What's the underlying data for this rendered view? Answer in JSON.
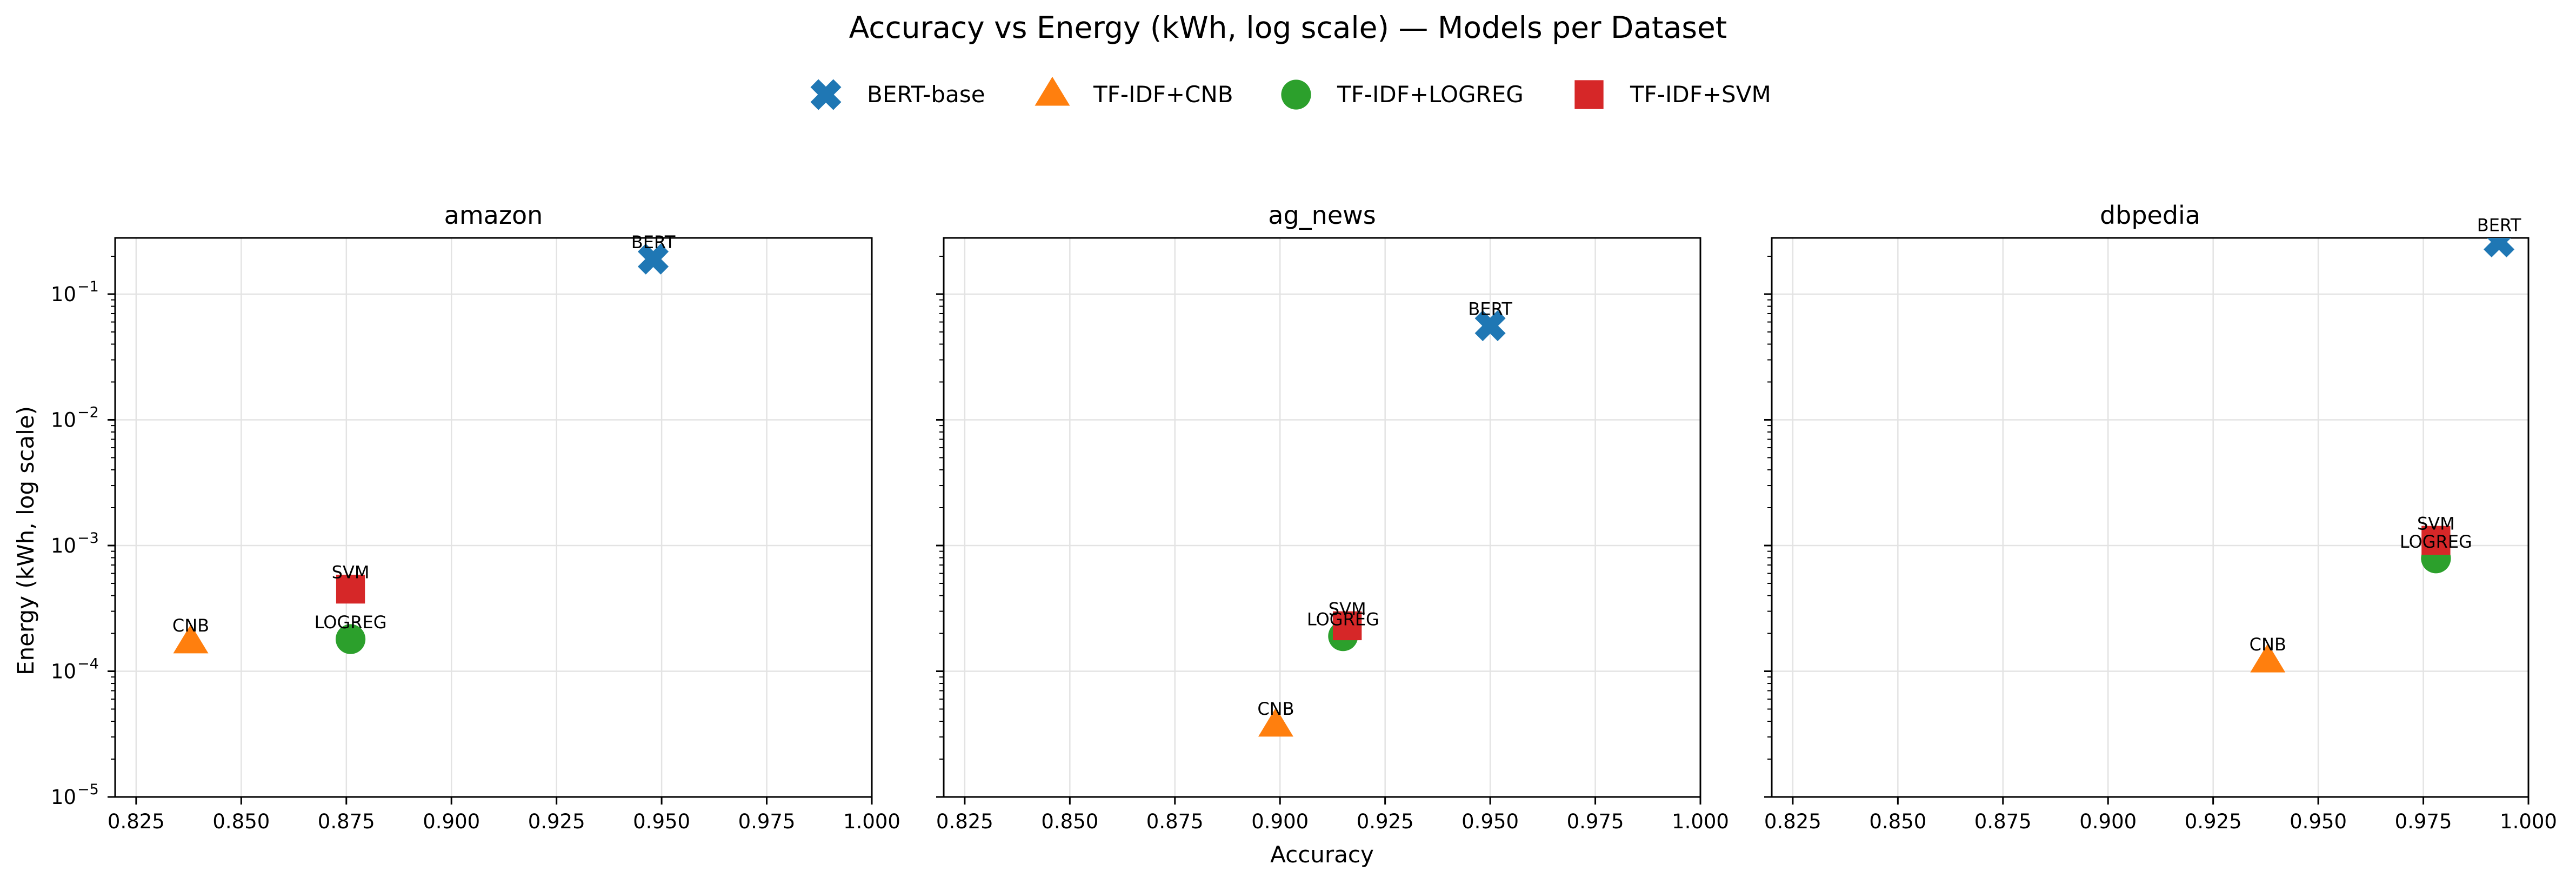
{
  "chart_data": {
    "type": "scatter",
    "title": "Accuracy vs Energy (kWh, log scale) — Models per Dataset",
    "xlabel": "Accuracy",
    "ylabel": "Energy (kWh, log scale)",
    "xlim": [
      0.82,
      1.0
    ],
    "ylim": [
      1e-05,
      0.28
    ],
    "yscale": "log",
    "grid": true,
    "legend_position": "top-center",
    "x_ticks": [
      "0.825",
      "0.850",
      "0.875",
      "0.900",
      "0.925",
      "0.950",
      "0.975",
      "1.000"
    ],
    "y_ticks": [
      {
        "base": "10",
        "exp": "−5"
      },
      {
        "base": "10",
        "exp": "−4"
      },
      {
        "base": "10",
        "exp": "−3"
      },
      {
        "base": "10",
        "exp": "−2"
      },
      {
        "base": "10",
        "exp": "−1"
      }
    ],
    "legend": [
      {
        "name": "BERT-base",
        "marker": "x",
        "color": "#1f77b4"
      },
      {
        "name": "TF-IDF+CNB",
        "marker": "triangle",
        "color": "#ff7f0e"
      },
      {
        "name": "TF-IDF+LOGREG",
        "marker": "circle",
        "color": "#2ca02c"
      },
      {
        "name": "TF-IDF+SVM",
        "marker": "square",
        "color": "#d62728"
      }
    ],
    "panels": [
      {
        "title": "amazon",
        "points": [
          {
            "model": "BERT-base",
            "label": "BERT",
            "x": 0.948,
            "y": 0.19
          },
          {
            "model": "TF-IDF+CNB",
            "label": "CNB",
            "x": 0.838,
            "y": 0.00017
          },
          {
            "model": "TF-IDF+LOGREG",
            "label": "LOGREG",
            "x": 0.876,
            "y": 0.00018
          },
          {
            "model": "TF-IDF+SVM",
            "label": "SVM",
            "x": 0.876,
            "y": 0.00045
          }
        ]
      },
      {
        "title": "ag_news",
        "points": [
          {
            "model": "BERT-base",
            "label": "BERT",
            "x": 0.95,
            "y": 0.056
          },
          {
            "model": "TF-IDF+CNB",
            "label": "CNB",
            "x": 0.899,
            "y": 3.7e-05
          },
          {
            "model": "TF-IDF+LOGREG",
            "label": "LOGREG",
            "x": 0.915,
            "y": 0.00019
          },
          {
            "model": "TF-IDF+SVM",
            "label": "SVM",
            "x": 0.916,
            "y": 0.00023
          }
        ]
      },
      {
        "title": "dbpedia",
        "points": [
          {
            "model": "BERT-base",
            "label": "BERT",
            "x": 0.993,
            "y": 0.26
          },
          {
            "model": "TF-IDF+CNB",
            "label": "CNB",
            "x": 0.938,
            "y": 0.00012
          },
          {
            "model": "TF-IDF+LOGREG",
            "label": "LOGREG",
            "x": 0.978,
            "y": 0.00079
          },
          {
            "model": "TF-IDF+SVM",
            "label": "SVM",
            "x": 0.978,
            "y": 0.0011
          }
        ]
      }
    ]
  }
}
